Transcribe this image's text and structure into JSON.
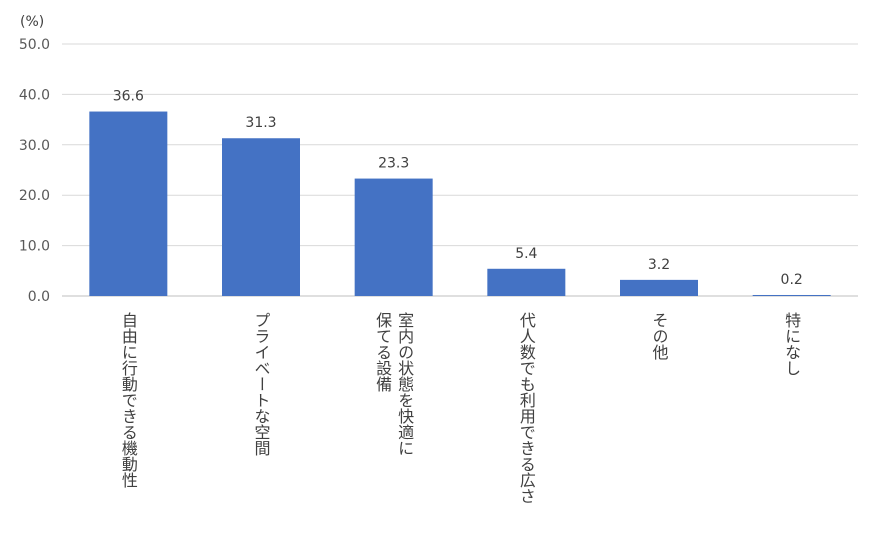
{
  "chart_data": {
    "type": "bar",
    "unit_label": "(%)",
    "categories": [
      [
        "自由に行動できる機動性"
      ],
      [
        "プライベートな空間"
      ],
      [
        "室内の状態を快適に",
        "保てる設備"
      ],
      [
        "代人数でも利用できる広さ"
      ],
      [
        "その他"
      ],
      [
        "特になし"
      ]
    ],
    "values": [
      36.6,
      31.3,
      23.3,
      5.4,
      3.2,
      0.2
    ],
    "value_labels": [
      "36.6",
      "31.3",
      "23.3",
      "5.4",
      "3.2",
      "0.2"
    ],
    "ylim": [
      0,
      50
    ],
    "y_ticks": [
      "0.0",
      "10.0",
      "20.0",
      "30.0",
      "40.0",
      "50.0"
    ],
    "grid": true,
    "bar_color": "#4472c4",
    "xlabel": "",
    "ylabel": ""
  }
}
